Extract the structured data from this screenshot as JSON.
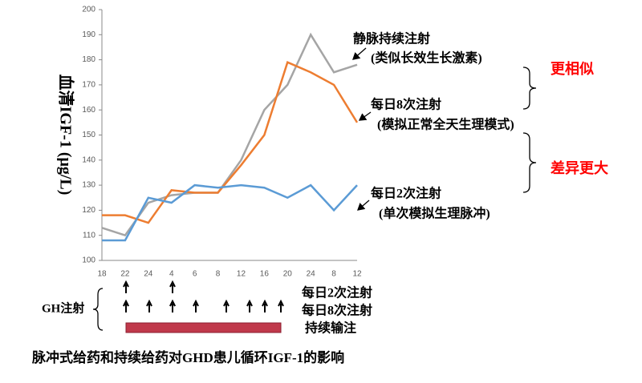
{
  "chart_data": {
    "type": "line",
    "y_label": "血清IGF-1 (μg/L)",
    "categories": [
      "18",
      "22",
      "24",
      "4",
      "6",
      "8",
      "12",
      "16",
      "20",
      "24",
      "8",
      "12"
    ],
    "ylim": [
      100,
      200
    ],
    "yticks": [
      100,
      110,
      120,
      130,
      140,
      150,
      160,
      170,
      180,
      190,
      200
    ],
    "series": [
      {
        "name": "静脉持续注射",
        "note": "(类似长效生长激素)",
        "color": "#a5a5a5",
        "values": [
          113,
          110,
          123,
          126,
          127,
          127,
          140,
          160,
          170,
          190,
          175,
          178
        ]
      },
      {
        "name": "每日8次注射",
        "note": "(模拟正常全天生理模式)",
        "color": "#ed7d31",
        "values": [
          118,
          118,
          115,
          128,
          127,
          127,
          138,
          150,
          179,
          175,
          170,
          155
        ]
      },
      {
        "name": "每日2次注射",
        "note": "(单次模拟生理脉冲)",
        "color": "#5b9bd5",
        "values": [
          108,
          108,
          125,
          123,
          130,
          129,
          130,
          129,
          125,
          130,
          120,
          130
        ]
      }
    ],
    "annotations": [
      "更相似",
      "差异更大"
    ],
    "injection": {
      "label": "GH注射",
      "rows": [
        "每日2次注射",
        "每日8次注射",
        "持续输注"
      ]
    },
    "title": "脉冲式给药和持续给药对GHD患儿循环IGF-1的影响"
  }
}
